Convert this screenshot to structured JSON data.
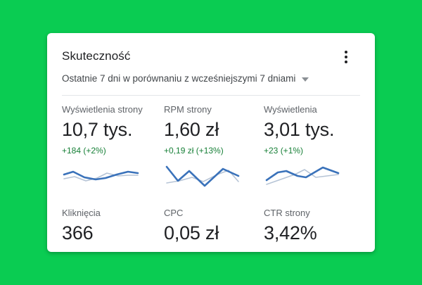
{
  "page": {
    "background_color": "#0acc52"
  },
  "card": {
    "title": "Skuteczność",
    "subtitle": "Ostatnie 7 dni w porównaniu z wcześniejszymi 7 dniami",
    "menu_icon": "kebab-menu-icon",
    "subtitle_icon": "chevron-down-icon"
  },
  "colors": {
    "change_positive": "#188038",
    "spark_current": "#3a72ba",
    "spark_previous": "#b6c4d6",
    "value_text": "#202124",
    "label_text": "#5f6368"
  },
  "metrics": {
    "top": [
      {
        "label": "Wyświetlenia strony",
        "value": "10,7 tys.",
        "change": "+184 (+2%)",
        "spark": {
          "current": "3,17 16,13 32,21 48,24 62,22 78,17 94,13 108,15",
          "previous": "3,23 18,20 34,26 50,22 64,15 80,19 94,18 108,18"
        }
      },
      {
        "label": "RPM strony",
        "value": "1,60 zł",
        "change": "+0,19 zł (+13%)",
        "spark": {
          "current": "4,6 20,26 36,12 58,33 84,9 106,19",
          "previous": "4,29 22,26 40,21 56,27 76,17 92,11 106,27"
        }
      },
      {
        "label": "Wyświetlenia",
        "value": "3,01 tys.",
        "change": "+23 (+1%)",
        "spark": {
          "current": "4,25 20,14 32,12 48,19 60,21 84,7 106,15",
          "previous": "4,31 24,24 44,17 58,10 74,21 106,17"
        }
      }
    ],
    "bottom": [
      {
        "label": "Kliknięcia",
        "value": "366"
      },
      {
        "label": "CPC",
        "value": "0,05 zł"
      },
      {
        "label": "CTR strony",
        "value": "3,42%"
      }
    ]
  }
}
